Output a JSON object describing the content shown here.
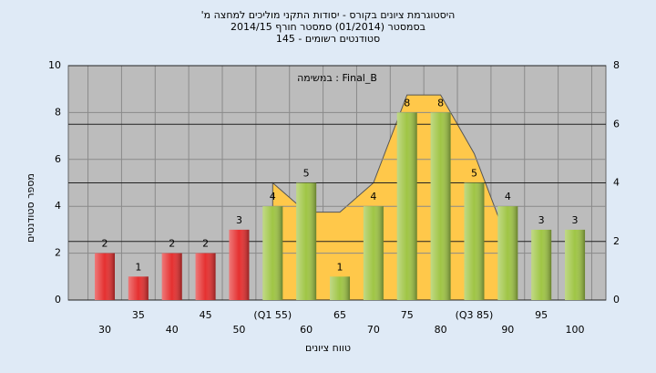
{
  "chart_data": {
    "type": "bar",
    "title": "'היסטוגרמת ציונים בקורס - יסודות התקני מוליכים למחצה מ",
    "subtitle": "בסמסטר  (01/2014)  סמסטר חורף 2014/15",
    "subtitle2": "סטודנטים רשומים - 145",
    "annotation": "במשימה : Final_B",
    "xlabel": "טווח ציונים",
    "ylabel": "מספר סטודנטים",
    "categories": [
      "30",
      "35",
      "40",
      "45",
      "50",
      "(Q1 55)",
      "60",
      "65",
      "70",
      "75",
      "80",
      "(Q3 85)",
      "90",
      "95",
      "100"
    ],
    "values": [
      2,
      1,
      2,
      2,
      3,
      4,
      5,
      1,
      4,
      8,
      8,
      5,
      4,
      3,
      3
    ],
    "colors": [
      "#e53030",
      "#e53030",
      "#e53030",
      "#e53030",
      "#e53030",
      "#9fc545",
      "#9fc545",
      "#9fc545",
      "#9fc545",
      "#9fc545",
      "#9fc545",
      "#9fc545",
      "#9fc545",
      "#9fc545",
      "#9fc545"
    ],
    "area": {
      "axis": "y2",
      "color": "#ffc84a",
      "values": [
        null,
        null,
        null,
        null,
        null,
        4,
        3,
        3,
        4,
        7,
        7,
        5,
        2,
        null,
        null
      ]
    },
    "ylim": [
      0,
      10
    ],
    "yticks": [
      0,
      2,
      4,
      6,
      8,
      10
    ],
    "y2lim": [
      0,
      8
    ],
    "y2ticks": [
      0,
      2,
      4,
      6,
      8
    ],
    "grid": true
  }
}
